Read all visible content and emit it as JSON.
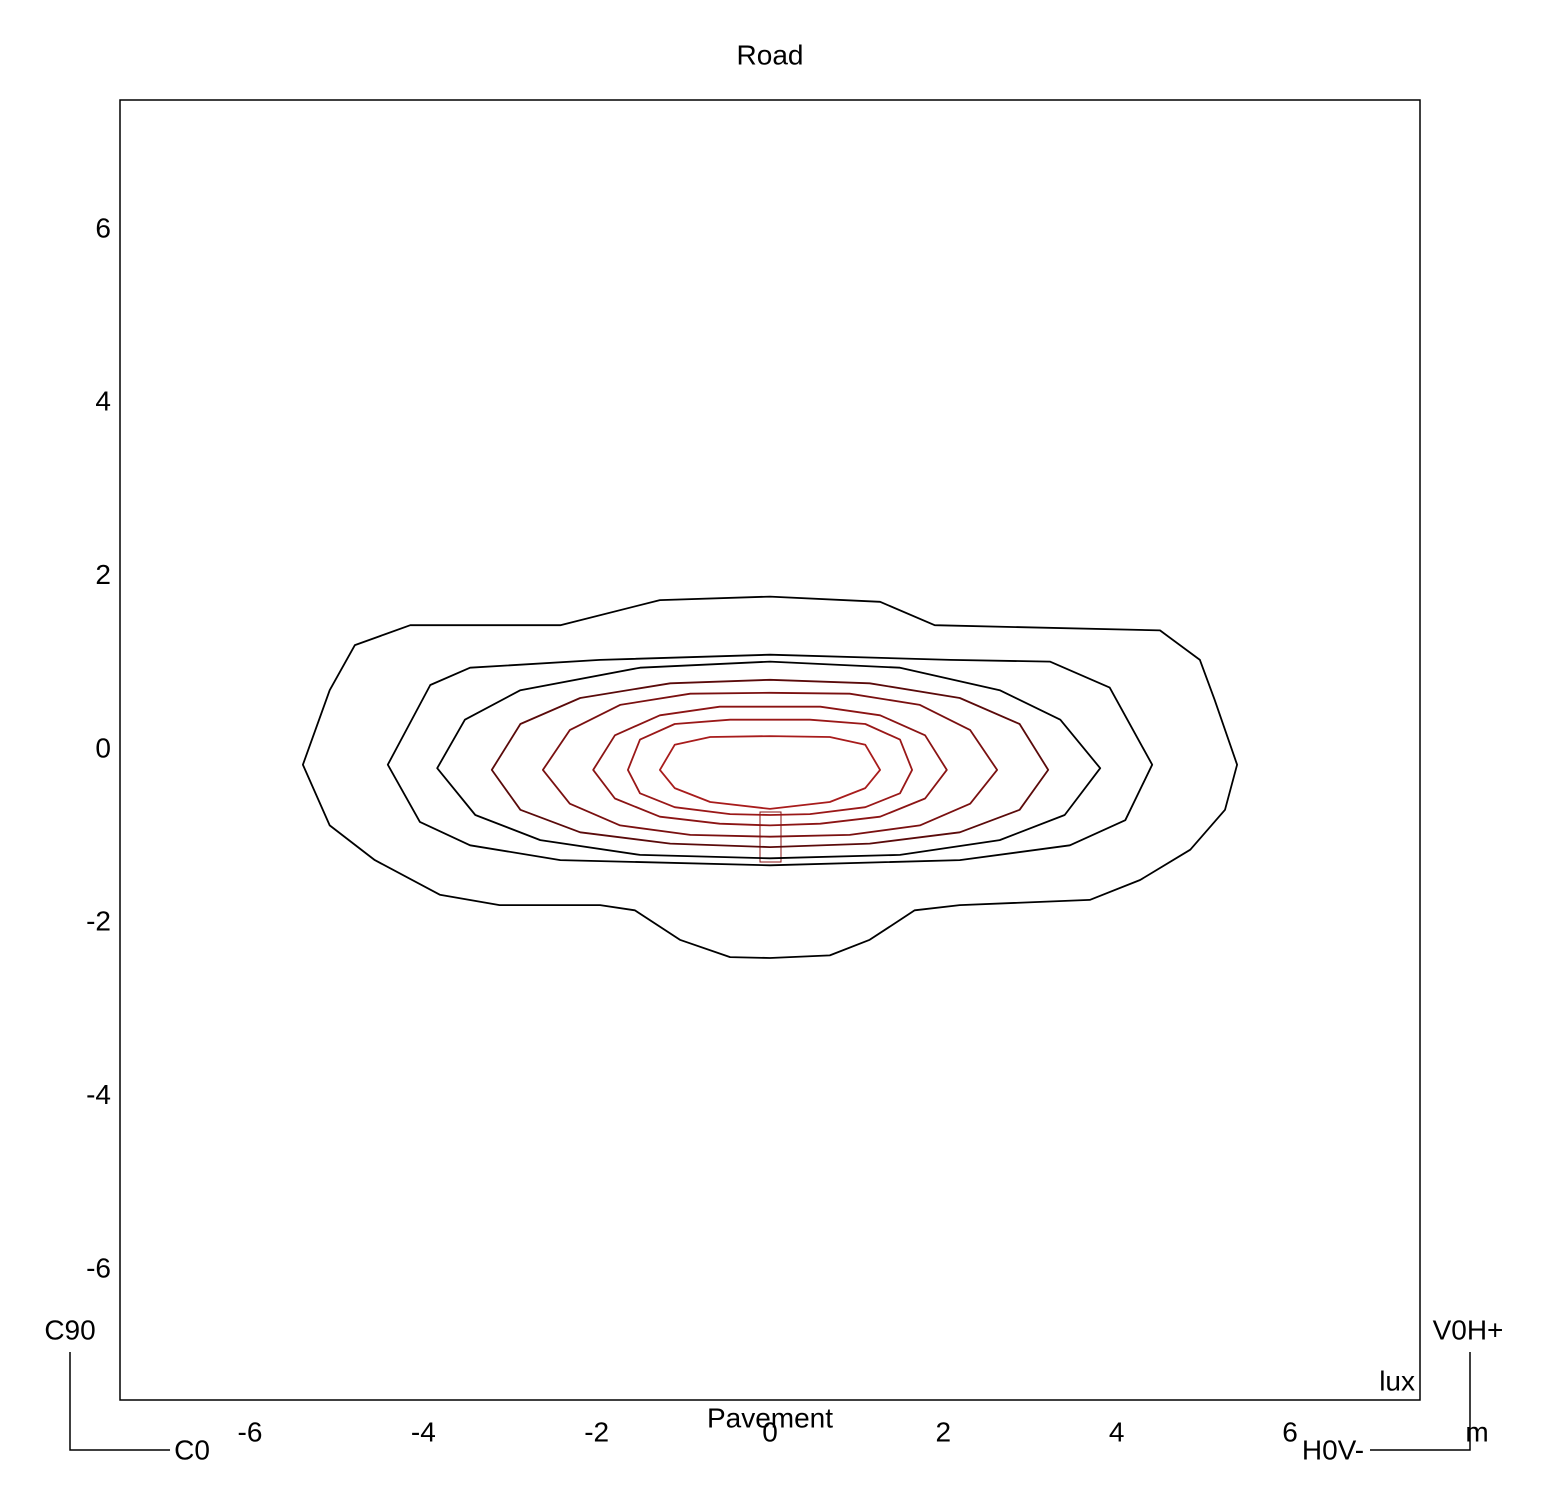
{
  "chart_data": {
    "type": "contour",
    "title": "Road",
    "bottom_label": "Pavement",
    "unit_label": "lux",
    "axis_unit": "m",
    "corner_labels": {
      "top_left": "C90",
      "bottom_left": "C0",
      "top_right": "V0H+",
      "bottom_right": "H0V-"
    },
    "xlim": [
      -7.5,
      7.5
    ],
    "ylim": [
      -7.5,
      7.5
    ],
    "xticks": [
      -6,
      -4,
      -2,
      0,
      2,
      4,
      6
    ],
    "yticks": [
      -6,
      -4,
      -2,
      0,
      2,
      4,
      6
    ],
    "series": [
      {
        "color": "#000000",
        "x": [
          -5.39,
          -5.08,
          -4.79,
          -4.15,
          -2.42,
          -1.27,
          0,
          1.27,
          1.9,
          4.5,
          4.96,
          5.13,
          5.39,
          5.25,
          4.85,
          4.27,
          3.69,
          2.19,
          1.67,
          1.15,
          0.69,
          0,
          -0.46,
          -1.04,
          -1.56,
          -1.96,
          -3.12,
          -3.81,
          -4.56,
          -5.08
        ],
        "y": [
          -0.17,
          0.69,
          1.21,
          1.44,
          1.44,
          1.73,
          1.77,
          1.71,
          1.44,
          1.38,
          1.04,
          0.58,
          -0.17,
          -0.69,
          -1.15,
          -1.5,
          -1.73,
          -1.79,
          -1.85,
          -2.19,
          -2.37,
          -2.4,
          -2.39,
          -2.19,
          -1.85,
          -1.79,
          -1.79,
          -1.67,
          -1.27,
          -0.87
        ]
      },
      {
        "color": "#000000",
        "x": [
          -4.41,
          -3.92,
          -3.46,
          -1.96,
          0,
          2.08,
          3.23,
          3.92,
          4.41,
          4.1,
          3.46,
          2.19,
          0,
          -2.42,
          -3.46,
          -4.04
        ],
        "y": [
          -0.17,
          0.75,
          0.95,
          1.04,
          1.1,
          1.04,
          1.02,
          0.72,
          -0.17,
          -0.81,
          -1.1,
          -1.27,
          -1.33,
          -1.27,
          -1.1,
          -0.83
        ]
      },
      {
        "color": "#000000",
        "x": [
          -3.84,
          -3.52,
          -2.88,
          -1.5,
          0,
          1.5,
          2.65,
          3.35,
          3.81,
          3.4,
          2.65,
          1.5,
          0,
          -1.5,
          -2.65,
          -3.4
        ],
        "y": [
          -0.21,
          0.35,
          0.69,
          0.95,
          1.02,
          0.95,
          0.69,
          0.35,
          -0.21,
          -0.75,
          -1.04,
          -1.21,
          -1.25,
          -1.21,
          -1.04,
          -0.75
        ]
      },
      {
        "color": "#5a0a0a",
        "x": [
          -3.21,
          -2.88,
          -2.19,
          -1.15,
          0,
          1.15,
          2.19,
          2.88,
          3.21,
          2.88,
          2.19,
          1.15,
          0,
          -1.15,
          -2.19,
          -2.88
        ],
        "y": [
          -0.23,
          0.3,
          0.6,
          0.77,
          0.81,
          0.77,
          0.6,
          0.3,
          -0.23,
          -0.69,
          -0.95,
          -1.08,
          -1.12,
          -1.08,
          -0.95,
          -0.69
        ]
      },
      {
        "color": "#7a1010",
        "x": [
          -2.62,
          -2.31,
          -1.73,
          -0.92,
          0,
          0.92,
          1.73,
          2.31,
          2.62,
          2.31,
          1.73,
          0.92,
          0,
          -0.92,
          -1.73,
          -2.31
        ],
        "y": [
          -0.23,
          0.23,
          0.52,
          0.65,
          0.66,
          0.65,
          0.52,
          0.23,
          -0.23,
          -0.62,
          -0.87,
          -0.98,
          -1.0,
          -0.98,
          -0.87,
          -0.62
        ]
      },
      {
        "color": "#8b1414",
        "x": [
          -2.04,
          -1.79,
          -1.27,
          -0.58,
          0,
          0.58,
          1.27,
          1.79,
          2.04,
          1.79,
          1.27,
          0.58,
          0,
          -0.58,
          -1.27,
          -1.79
        ],
        "y": [
          -0.23,
          0.17,
          0.4,
          0.5,
          0.5,
          0.5,
          0.4,
          0.17,
          -0.23,
          -0.56,
          -0.77,
          -0.85,
          -0.87,
          -0.85,
          -0.77,
          -0.56
        ]
      },
      {
        "color": "#9a1818",
        "x": [
          -1.64,
          -1.5,
          -1.1,
          -0.46,
          0,
          0.46,
          1.1,
          1.5,
          1.64,
          1.5,
          1.1,
          0.46,
          0,
          -0.46,
          -1.1,
          -1.5
        ],
        "y": [
          -0.23,
          0.12,
          0.3,
          0.35,
          0.35,
          0.35,
          0.3,
          0.12,
          -0.23,
          -0.5,
          -0.66,
          -0.74,
          -0.75,
          -0.74,
          -0.66,
          -0.5
        ]
      },
      {
        "color": "#a81c1c",
        "x": [
          -1.27,
          -1.1,
          -0.69,
          0,
          0.69,
          1.1,
          1.27,
          1.1,
          0.69,
          0,
          -0.69,
          -1.1
        ],
        "y": [
          -0.23,
          0.06,
          0.15,
          0.16,
          0.15,
          0.06,
          -0.23,
          -0.44,
          -0.6,
          -0.68,
          -0.6,
          -0.44
        ]
      }
    ]
  }
}
